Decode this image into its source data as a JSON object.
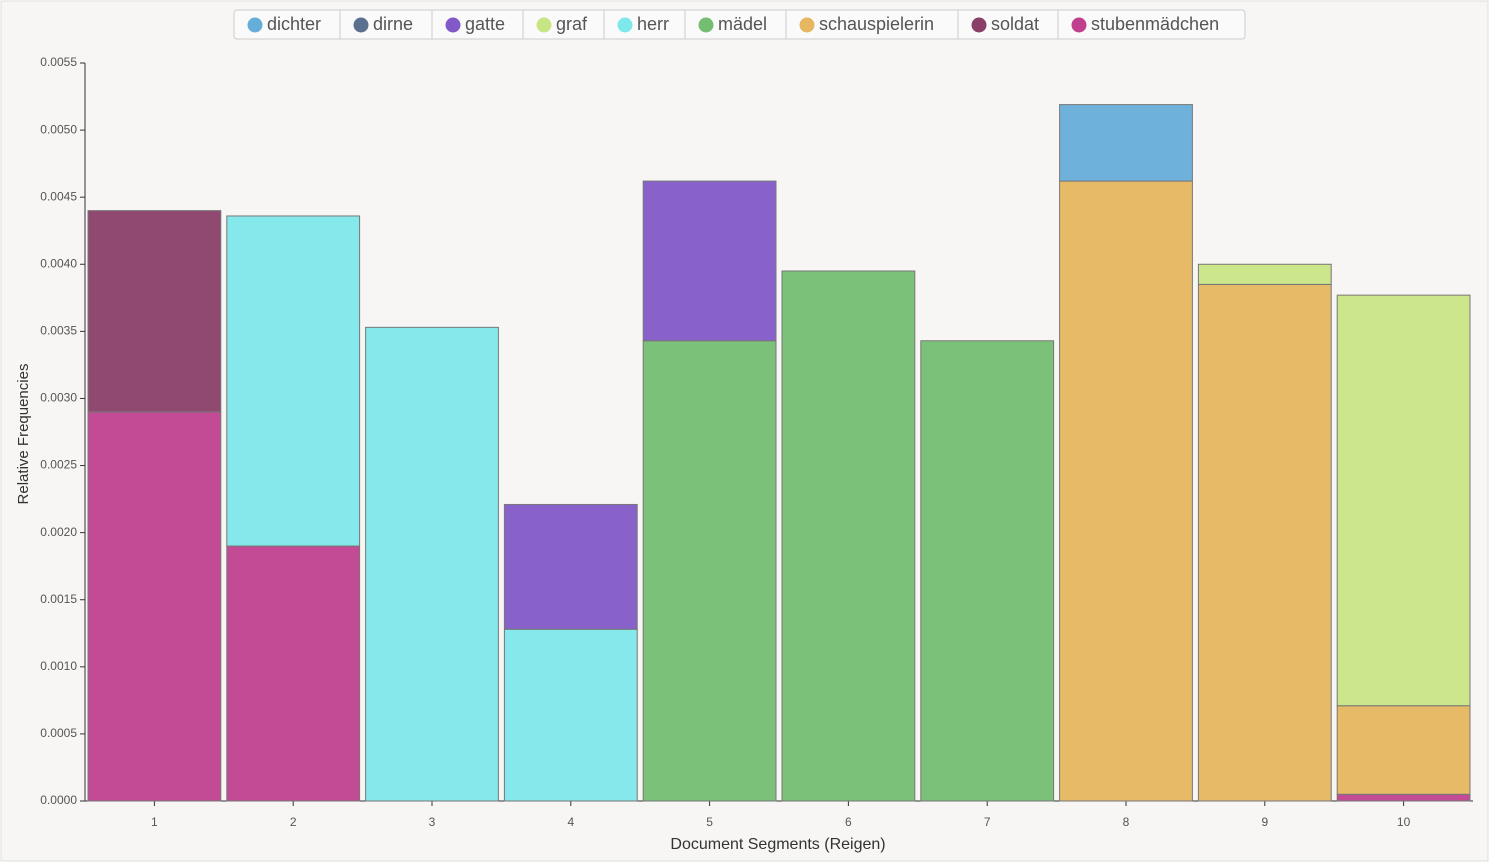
{
  "chart_data": {
    "type": "bar",
    "stacked": true,
    "y_label": "Relative Frequencies",
    "x_label": "Document Segments (Reigen)",
    "categories": [
      "1",
      "2",
      "3",
      "4",
      "5",
      "6",
      "7",
      "8",
      "9",
      "10"
    ],
    "series": [
      {
        "name": "dichter",
        "color": "#66aed9",
        "values": [
          null,
          null,
          null,
          null,
          null,
          null,
          null,
          0.00057,
          null,
          null
        ]
      },
      {
        "name": "dirne",
        "color": "#5b6f8f",
        "values": [
          null,
          null,
          null,
          null,
          null,
          null,
          null,
          null,
          null,
          null
        ]
      },
      {
        "name": "gatte",
        "color": "#8259c8",
        "values": [
          null,
          null,
          null,
          0.00093,
          0.00119,
          null,
          null,
          null,
          null,
          null
        ]
      },
      {
        "name": "graf",
        "color": "#c8e585",
        "values": [
          null,
          null,
          null,
          null,
          null,
          null,
          null,
          null,
          0.00015,
          0.00306
        ]
      },
      {
        "name": "herr",
        "color": "#7ee8ea",
        "values": [
          null,
          0.00246,
          0.00353,
          0.00128,
          null,
          null,
          null,
          null,
          null,
          null
        ]
      },
      {
        "name": "mädel",
        "color": "#74be72",
        "values": [
          null,
          null,
          null,
          null,
          0.00343,
          0.00395,
          0.00343,
          null,
          null,
          null
        ]
      },
      {
        "name": "schauspielerin",
        "color": "#e6b660",
        "values": [
          null,
          null,
          null,
          null,
          null,
          null,
          null,
          0.00462,
          0.00385,
          0.00066
        ]
      },
      {
        "name": "soldat",
        "color": "#8a3f69",
        "values": [
          0.0015,
          null,
          null,
          null,
          null,
          null,
          null,
          null,
          null,
          null
        ]
      },
      {
        "name": "stubenmädchen",
        "color": "#c0408e",
        "values": [
          0.0029,
          0.0019,
          null,
          null,
          null,
          null,
          null,
          null,
          null,
          5e-05
        ]
      }
    ],
    "ylim": [
      0,
      0.0055
    ],
    "yticks": [
      {
        "value": 0,
        "label": "0.0000"
      },
      0.0005,
      {
        "value": 0.001,
        "label": "0.0010"
      },
      0.0015,
      {
        "value": 0.002,
        "label": "0.0020"
      },
      0.0025,
      {
        "value": 0.003,
        "label": "0.0030"
      },
      0.0035,
      {
        "value": 0.004,
        "label": "0.0040"
      },
      0.0045,
      {
        "value": 0.005,
        "label": "0.0050"
      },
      0.0055
    ],
    "legend": "top"
  }
}
